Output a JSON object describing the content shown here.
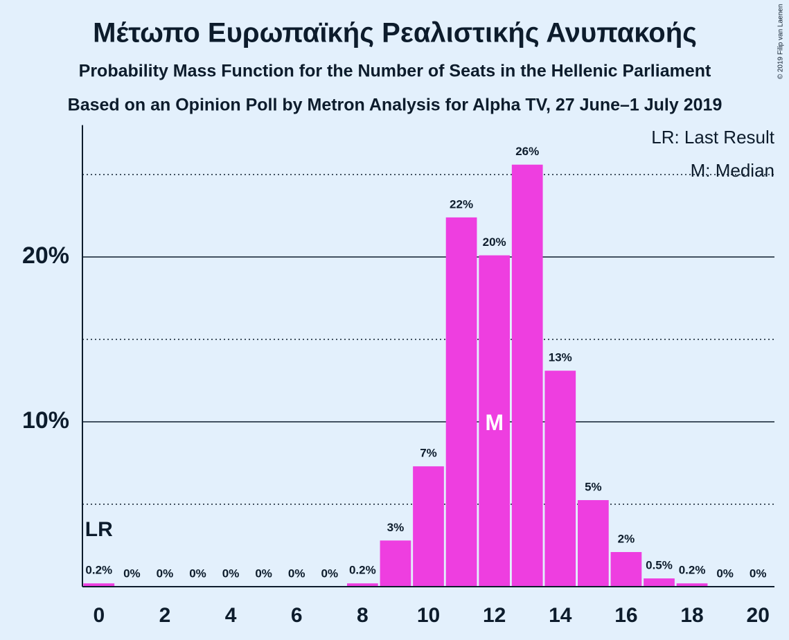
{
  "chart_data": {
    "type": "bar",
    "title": "Μέτωπο Ευρωπαϊκής Ρεαλιστικής Ανυπακοής",
    "subtitles": [
      "Probability Mass Function for the Number of Seats in the Hellenic Parliament",
      "Based on an Opinion Poll by Metron Analysis for Alpha TV, 27 June–1 July 2019"
    ],
    "x": [
      0,
      1,
      2,
      3,
      4,
      5,
      6,
      7,
      8,
      9,
      10,
      11,
      12,
      13,
      14,
      15,
      16,
      17,
      18,
      19,
      20
    ],
    "values": [
      0.2,
      0,
      0,
      0,
      0,
      0,
      0,
      0,
      0.2,
      2.8,
      7.3,
      22.4,
      20.1,
      25.6,
      13.1,
      5.25,
      2.1,
      0.5,
      0.2,
      0,
      0
    ],
    "value_labels": [
      "0.2%",
      "0%",
      "0%",
      "0%",
      "0%",
      "0%",
      "0%",
      "0%",
      "0.2%",
      "3%",
      "7%",
      "22%",
      "20%",
      "26%",
      "13%",
      "5%",
      "2%",
      "0.5%",
      "0.2%",
      "0%",
      "0%"
    ],
    "color": "#ee3ee0",
    "xlim": [
      -0.5,
      20.5
    ],
    "xticks": [
      0,
      2,
      4,
      6,
      8,
      10,
      12,
      14,
      16,
      18,
      20
    ],
    "ylim": [
      0,
      28
    ],
    "yticks": [
      {
        "value": 10,
        "label": "10%"
      },
      {
        "value": 20,
        "label": "20%"
      }
    ],
    "minor_yticks": [
      5,
      15,
      25
    ],
    "last_result": {
      "x": 0,
      "label": "LR"
    },
    "median": {
      "x": 12,
      "label": "M"
    },
    "legend": [
      "LR: Last Result",
      "M: Median"
    ],
    "copyright": "© 2019 Filip van Laenen"
  }
}
